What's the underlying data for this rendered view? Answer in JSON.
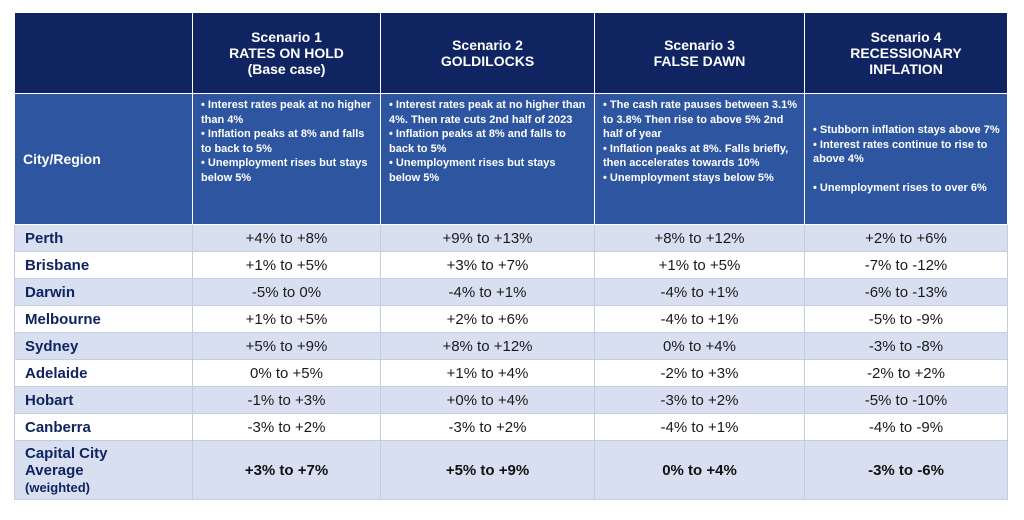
{
  "scenarios": [
    {
      "title_lines": [
        "Scenario 1",
        "RATES ON HOLD",
        "(Base case)"
      ],
      "description": [
        "• Interest rates peak at no higher than 4%",
        "• Inflation peaks at 8% and falls to back to 5%",
        "• Unemployment rises but stays below 5%"
      ]
    },
    {
      "title_lines": [
        "Scenario 2",
        "GOLDILOCKS"
      ],
      "description": [
        "• Interest rates peak at no higher than 4%. Then rate cuts 2nd half of 2023",
        "• Inflation peaks at 8% and falls to back to 5%",
        "• Unemployment rises but stays below 5%"
      ]
    },
    {
      "title_lines": [
        "Scenario 3",
        "FALSE DAWN"
      ],
      "description": [
        "• The cash rate pauses between 3.1% to 3.8% Then rise to above 5% 2nd half of year",
        "• Inflation peaks at 8%. Falls briefly, then accelerates towards 10%",
        "• Unemployment stays below 5%"
      ]
    },
    {
      "title_lines": [
        "Scenario 4",
        "RECESSIONARY",
        "INFLATION"
      ],
      "description": [
        "• Stubborn inflation stays above 7%",
        "• Interest rates continue to rise to above 4%",
        "",
        "• Unemployment rises to over 6%"
      ]
    }
  ],
  "city_header": "City/Region",
  "rows": [
    {
      "city": "Perth",
      "values": [
        "+4% to +8%",
        "+9% to +13%",
        "+8% to +12%",
        "+2% to +6%"
      ]
    },
    {
      "city": "Brisbane",
      "values": [
        "+1% to +5%",
        "+3% to +7%",
        "+1% to +5%",
        "-7% to -12%"
      ]
    },
    {
      "city": "Darwin",
      "values": [
        "-5% to 0%",
        "-4% to +1%",
        "-4% to +1%",
        "-6% to -13%"
      ]
    },
    {
      "city": "Melbourne",
      "values": [
        "+1% to +5%",
        "+2% to +6%",
        "-4% to +1%",
        "-5% to -9%"
      ]
    },
    {
      "city": "Sydney",
      "values": [
        "+5% to +9%",
        "+8% to +12%",
        "0% to +4%",
        "-3% to -8%"
      ]
    },
    {
      "city": "Adelaide",
      "values": [
        "0% to +5%",
        "+1% to +4%",
        "-2% to +3%",
        "-2% to +2%"
      ]
    },
    {
      "city": "Hobart",
      "values": [
        "-1% to +3%",
        "+0% to +4%",
        "-3% to +2%",
        "-5% to -10%"
      ]
    },
    {
      "city": "Canberra",
      "values": [
        "-3% to +2%",
        "-3% to +2%",
        "-4% to +1%",
        "-4% to -9%"
      ]
    }
  ],
  "average": {
    "label_lines": [
      "Capital City",
      "Average"
    ],
    "label_sub": "(weighted)",
    "values": [
      "+3% to +7%",
      "+5% to +9%",
      "0% to +4%",
      "-3% to -6%"
    ]
  },
  "colors": {
    "header_dark": "#0f2461",
    "header_mid": "#2e55a0",
    "row_shade": "#d7dff0"
  }
}
